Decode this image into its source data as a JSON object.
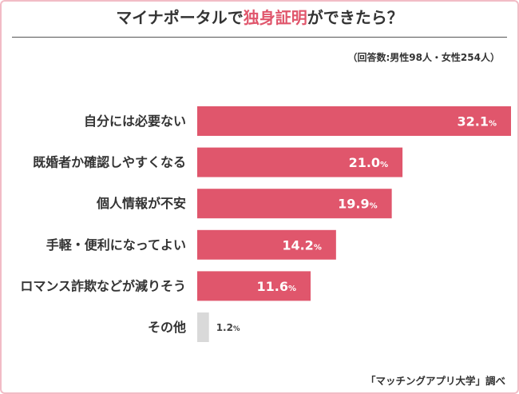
{
  "chart_data": {
    "type": "bar",
    "orientation": "horizontal",
    "title": "マイナポータルで独身証明ができたら？",
    "title_highlight": "独身証明",
    "title_highlight_color": "#e0566c",
    "subtitle": "（回答数:男性98人・女性254人）",
    "categories": [
      "自分には必要ない",
      "既婚者か確認しやすくなる",
      "個人情報が不安",
      "手軽・便利になってよい",
      "ロマンス詐欺などが減りそう",
      "その他"
    ],
    "values": [
      32.1,
      21.0,
      19.9,
      14.2,
      11.6,
      1.2
    ],
    "unit": "%",
    "xlim": [
      0,
      32.1
    ],
    "grid": false,
    "bar_colors": [
      "#e0566c",
      "#e0566c",
      "#e0566c",
      "#e0566c",
      "#e0566c",
      "#d9d9d9"
    ],
    "source": "「マッチングアプリ大学」調べ"
  }
}
